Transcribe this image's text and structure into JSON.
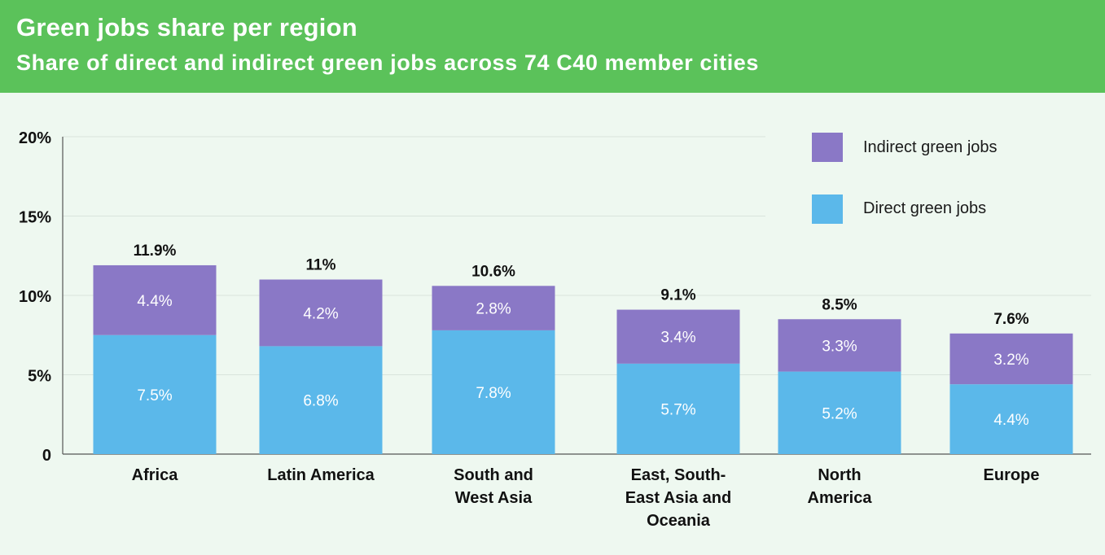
{
  "header": {
    "title": "Green jobs share per region",
    "subtitle": "Share of direct and indirect green jobs across 74 C40 member cities"
  },
  "colors": {
    "header_bg": "#5bc25a",
    "direct": "#5bb8ea",
    "indirect": "#8a78c6",
    "background": "#eef8f0"
  },
  "chart_data": {
    "type": "bar",
    "stacked": true,
    "categories": [
      [
        "Africa"
      ],
      [
        "Latin America"
      ],
      [
        "South and",
        "West Asia"
      ],
      [
        "East, South-",
        "East Asia and",
        "Oceania"
      ],
      [
        "North",
        "America"
      ],
      [
        "Europe"
      ]
    ],
    "series": [
      {
        "name": "Direct green jobs",
        "values": [
          7.5,
          6.8,
          7.8,
          5.7,
          5.2,
          4.4
        ],
        "labels": [
          "7.5%",
          "6.8%",
          "7.8%",
          "5.7%",
          "5.2%",
          "4.4%"
        ]
      },
      {
        "name": "Indirect green jobs",
        "values": [
          4.4,
          4.2,
          2.8,
          3.4,
          3.3,
          3.2
        ],
        "labels": [
          "4.4%",
          "4.2%",
          "2.8%",
          "3.4%",
          "3.3%",
          "3.2%"
        ]
      }
    ],
    "totals": [
      "11.9%",
      "11%",
      "10.6%",
      "9.1%",
      "8.5%",
      "7.6%"
    ],
    "total_values": [
      11.9,
      11.0,
      10.6,
      9.1,
      8.5,
      7.6
    ],
    "yticks": [
      "0",
      "5%",
      "10%",
      "15%",
      "20%"
    ],
    "ytick_values": [
      0,
      5,
      10,
      15,
      20
    ],
    "ylim": [
      0,
      20
    ],
    "grid": true,
    "legend": [
      "Indirect green jobs",
      "Direct green jobs"
    ],
    "legend_position": "top-right"
  }
}
